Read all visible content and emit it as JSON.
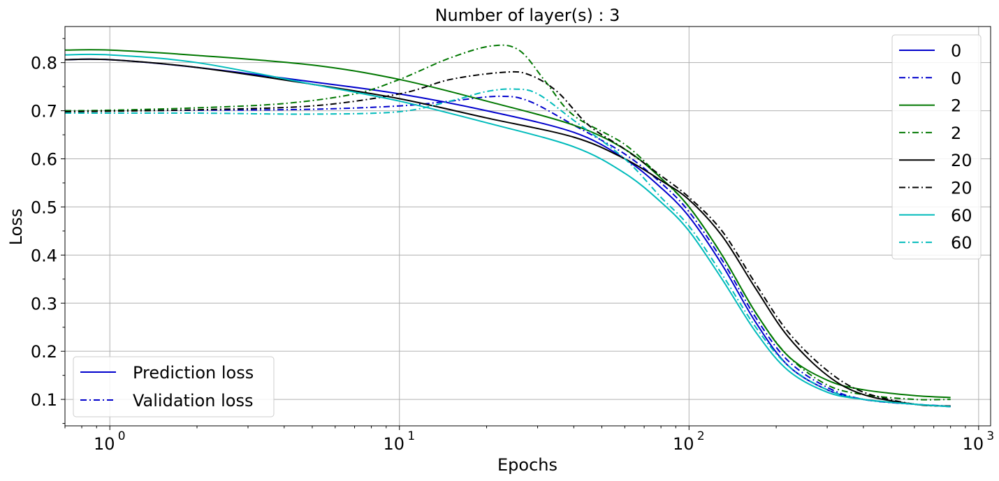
{
  "chart_data": {
    "type": "line",
    "title": "Number of layer(s) : 3",
    "xlabel": "Epochs",
    "ylabel": "Loss",
    "xscale": "log",
    "xlim": [
      0.7,
      1100
    ],
    "ylim": [
      0.045,
      0.875
    ],
    "grid": true,
    "xticks": [
      {
        "value": 1,
        "base": "10",
        "exp": "0"
      },
      {
        "value": 10,
        "base": "10",
        "exp": "1"
      },
      {
        "value": 100,
        "base": "10",
        "exp": "2"
      },
      {
        "value": 1000,
        "base": "10",
        "exp": "3"
      }
    ],
    "yticks": [
      {
        "value": 0.1,
        "label": "0.1"
      },
      {
        "value": 0.2,
        "label": "0.2"
      },
      {
        "value": 0.3,
        "label": "0.3"
      },
      {
        "value": 0.4,
        "label": "0.4"
      },
      {
        "value": 0.5,
        "label": "0.5"
      },
      {
        "value": 0.6,
        "label": "0.6"
      },
      {
        "value": 0.7,
        "label": "0.7"
      },
      {
        "value": 0.8,
        "label": "0.8"
      }
    ],
    "legend_position": "upper right",
    "style_legend_position": "lower left",
    "style_legend": [
      {
        "label": "Prediction loss",
        "color": "#0000cc",
        "dash": "solid"
      },
      {
        "label": "Validation loss",
        "color": "#0000cc",
        "dash": "dashdot"
      }
    ],
    "series": [
      {
        "name": "0",
        "color": "#0000cc",
        "dash": "solid",
        "points": [
          [
            0.7,
            0.806
          ],
          [
            1,
            0.806
          ],
          [
            2,
            0.79
          ],
          [
            5,
            0.76
          ],
          [
            10,
            0.735
          ],
          [
            20,
            0.7
          ],
          [
            40,
            0.655
          ],
          [
            60,
            0.6
          ],
          [
            80,
            0.54
          ],
          [
            100,
            0.48
          ],
          [
            130,
            0.38
          ],
          [
            170,
            0.26
          ],
          [
            220,
            0.17
          ],
          [
            300,
            0.12
          ],
          [
            400,
            0.1
          ],
          [
            600,
            0.09
          ],
          [
            800,
            0.085
          ]
        ]
      },
      {
        "name": "0",
        "color": "#0000cc",
        "dash": "dashdot",
        "points": [
          [
            0.7,
            0.7
          ],
          [
            1,
            0.7
          ],
          [
            2,
            0.701
          ],
          [
            5,
            0.703
          ],
          [
            10,
            0.71
          ],
          [
            15,
            0.72
          ],
          [
            22,
            0.73
          ],
          [
            28,
            0.72
          ],
          [
            40,
            0.67
          ],
          [
            60,
            0.61
          ],
          [
            80,
            0.55
          ],
          [
            100,
            0.49
          ],
          [
            130,
            0.39
          ],
          [
            170,
            0.27
          ],
          [
            220,
            0.18
          ],
          [
            300,
            0.125
          ],
          [
            400,
            0.1
          ],
          [
            600,
            0.09
          ],
          [
            800,
            0.086
          ]
        ]
      },
      {
        "name": "2",
        "color": "#007700",
        "dash": "solid",
        "points": [
          [
            0.7,
            0.826
          ],
          [
            1,
            0.826
          ],
          [
            2,
            0.815
          ],
          [
            5,
            0.795
          ],
          [
            10,
            0.765
          ],
          [
            20,
            0.72
          ],
          [
            40,
            0.67
          ],
          [
            60,
            0.62
          ],
          [
            80,
            0.56
          ],
          [
            100,
            0.5
          ],
          [
            130,
            0.4
          ],
          [
            170,
            0.28
          ],
          [
            220,
            0.19
          ],
          [
            300,
            0.14
          ],
          [
            400,
            0.12
          ],
          [
            600,
            0.108
          ],
          [
            800,
            0.104
          ]
        ]
      },
      {
        "name": "2",
        "color": "#007700",
        "dash": "dashdot",
        "points": [
          [
            0.7,
            0.7
          ],
          [
            1,
            0.701
          ],
          [
            2,
            0.706
          ],
          [
            4,
            0.715
          ],
          [
            7,
            0.735
          ],
          [
            10,
            0.765
          ],
          [
            15,
            0.81
          ],
          [
            21,
            0.835
          ],
          [
            26,
            0.825
          ],
          [
            32,
            0.76
          ],
          [
            40,
            0.69
          ],
          [
            60,
            0.63
          ],
          [
            80,
            0.56
          ],
          [
            100,
            0.5
          ],
          [
            130,
            0.4
          ],
          [
            170,
            0.28
          ],
          [
            220,
            0.19
          ],
          [
            300,
            0.13
          ],
          [
            400,
            0.11
          ],
          [
            600,
            0.1
          ],
          [
            800,
            0.1
          ]
        ]
      },
      {
        "name": "20",
        "color": "#000000",
        "dash": "solid",
        "points": [
          [
            0.7,
            0.806
          ],
          [
            1,
            0.806
          ],
          [
            2,
            0.79
          ],
          [
            5,
            0.755
          ],
          [
            10,
            0.725
          ],
          [
            20,
            0.685
          ],
          [
            40,
            0.645
          ],
          [
            60,
            0.6
          ],
          [
            80,
            0.555
          ],
          [
            100,
            0.515
          ],
          [
            130,
            0.44
          ],
          [
            170,
            0.33
          ],
          [
            220,
            0.23
          ],
          [
            300,
            0.15
          ],
          [
            400,
            0.11
          ],
          [
            600,
            0.09
          ],
          [
            800,
            0.086
          ]
        ]
      },
      {
        "name": "20",
        "color": "#000000",
        "dash": "dashdot",
        "points": [
          [
            0.7,
            0.698
          ],
          [
            1,
            0.699
          ],
          [
            2,
            0.702
          ],
          [
            5,
            0.71
          ],
          [
            10,
            0.735
          ],
          [
            15,
            0.765
          ],
          [
            23,
            0.78
          ],
          [
            28,
            0.775
          ],
          [
            35,
            0.74
          ],
          [
            45,
            0.67
          ],
          [
            60,
            0.62
          ],
          [
            80,
            0.565
          ],
          [
            100,
            0.52
          ],
          [
            130,
            0.45
          ],
          [
            170,
            0.34
          ],
          [
            220,
            0.24
          ],
          [
            300,
            0.16
          ],
          [
            400,
            0.115
          ],
          [
            600,
            0.09
          ],
          [
            800,
            0.086
          ]
        ]
      },
      {
        "name": "60",
        "color": "#00bbbb",
        "dash": "solid",
        "points": [
          [
            0.7,
            0.816
          ],
          [
            1,
            0.816
          ],
          [
            2,
            0.8
          ],
          [
            5,
            0.755
          ],
          [
            10,
            0.72
          ],
          [
            20,
            0.675
          ],
          [
            40,
            0.625
          ],
          [
            60,
            0.57
          ],
          [
            80,
            0.51
          ],
          [
            100,
            0.45
          ],
          [
            130,
            0.35
          ],
          [
            170,
            0.24
          ],
          [
            220,
            0.16
          ],
          [
            300,
            0.115
          ],
          [
            400,
            0.1
          ],
          [
            600,
            0.09
          ],
          [
            800,
            0.085
          ]
        ]
      },
      {
        "name": "60",
        "color": "#00bbbb",
        "dash": "dashdot",
        "points": [
          [
            0.7,
            0.695
          ],
          [
            1,
            0.695
          ],
          [
            2,
            0.695
          ],
          [
            5,
            0.693
          ],
          [
            10,
            0.698
          ],
          [
            15,
            0.72
          ],
          [
            20,
            0.74
          ],
          [
            25,
            0.745
          ],
          [
            30,
            0.735
          ],
          [
            40,
            0.68
          ],
          [
            60,
            0.6
          ],
          [
            80,
            0.52
          ],
          [
            100,
            0.46
          ],
          [
            130,
            0.36
          ],
          [
            170,
            0.25
          ],
          [
            220,
            0.17
          ],
          [
            300,
            0.12
          ],
          [
            400,
            0.1
          ],
          [
            600,
            0.09
          ],
          [
            800,
            0.085
          ]
        ]
      }
    ]
  }
}
